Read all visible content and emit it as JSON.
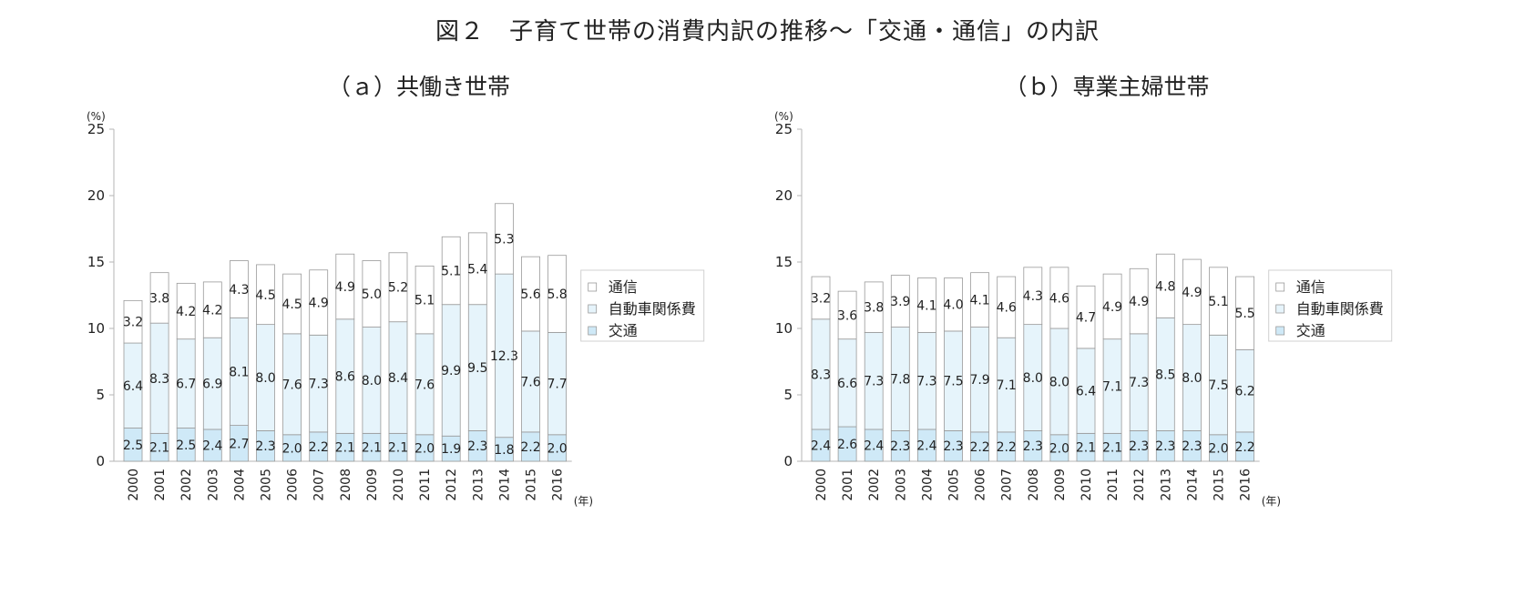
{
  "title": "図２　子育て世帯の消費内訳の推移～「交通・通信」の内訳",
  "colors": {
    "交通": "#cfe9f7",
    "自動車関係費": "#e6f4fb",
    "通信": "#ffffff",
    "border": "#9a9a9a",
    "axis": "#b5b5b5"
  },
  "chart_data": [
    {
      "type": "bar",
      "stacked": true,
      "title": "（ａ）共働き世帯",
      "ylabel": "(%)",
      "xlabel": "(年)",
      "ylim": [
        0,
        25
      ],
      "yticks": [
        0,
        5,
        10,
        15,
        20,
        25
      ],
      "categories": [
        "2000",
        "2001",
        "2002",
        "2003",
        "2004",
        "2005",
        "2006",
        "2007",
        "2008",
        "2009",
        "2010",
        "2011",
        "2012",
        "2013",
        "2014",
        "2015",
        "2016"
      ],
      "series": [
        {
          "name": "交通",
          "values": [
            2.5,
            2.1,
            2.5,
            2.4,
            2.7,
            2.3,
            2.0,
            2.2,
            2.1,
            2.1,
            2.1,
            2.0,
            1.9,
            2.3,
            1.8,
            2.2,
            2.0
          ]
        },
        {
          "name": "自動車関係費",
          "values": [
            6.4,
            8.3,
            6.7,
            6.9,
            8.1,
            8.0,
            7.6,
            7.3,
            8.6,
            8.0,
            8.4,
            7.6,
            9.9,
            9.5,
            12.3,
            7.6,
            7.7
          ]
        },
        {
          "name": "通信",
          "values": [
            3.2,
            3.8,
            4.2,
            4.2,
            4.3,
            4.5,
            4.5,
            4.9,
            4.9,
            5.0,
            5.2,
            5.1,
            5.1,
            5.4,
            5.3,
            5.6,
            5.8
          ]
        }
      ],
      "legend": [
        "通信",
        "自動車関係費",
        "交通"
      ],
      "legend_position": "right"
    },
    {
      "type": "bar",
      "stacked": true,
      "title": "（ｂ）専業主婦世帯",
      "ylabel": "(%)",
      "xlabel": "(年)",
      "ylim": [
        0,
        25
      ],
      "yticks": [
        0,
        5,
        10,
        15,
        20,
        25
      ],
      "categories": [
        "2000",
        "2001",
        "2002",
        "2003",
        "2004",
        "2005",
        "2006",
        "2007",
        "2008",
        "2009",
        "2010",
        "2011",
        "2012",
        "2013",
        "2014",
        "2015",
        "2016"
      ],
      "series": [
        {
          "name": "交通",
          "values": [
            2.4,
            2.6,
            2.4,
            2.3,
            2.4,
            2.3,
            2.2,
            2.2,
            2.3,
            2.0,
            2.1,
            2.1,
            2.3,
            2.3,
            2.3,
            2.0,
            2.2
          ]
        },
        {
          "name": "自動車関係費",
          "values": [
            8.3,
            6.6,
            7.3,
            7.8,
            7.3,
            7.5,
            7.9,
            7.1,
            8.0,
            8.0,
            6.4,
            7.1,
            7.3,
            8.5,
            8.0,
            7.5,
            6.2
          ]
        },
        {
          "name": "通信",
          "values": [
            3.2,
            3.6,
            3.8,
            3.9,
            4.1,
            4.0,
            4.1,
            4.6,
            4.3,
            4.6,
            4.7,
            4.9,
            4.9,
            4.8,
            4.9,
            5.1,
            5.5
          ]
        }
      ],
      "legend": [
        "通信",
        "自動車関係費",
        "交通"
      ],
      "legend_position": "right"
    }
  ]
}
